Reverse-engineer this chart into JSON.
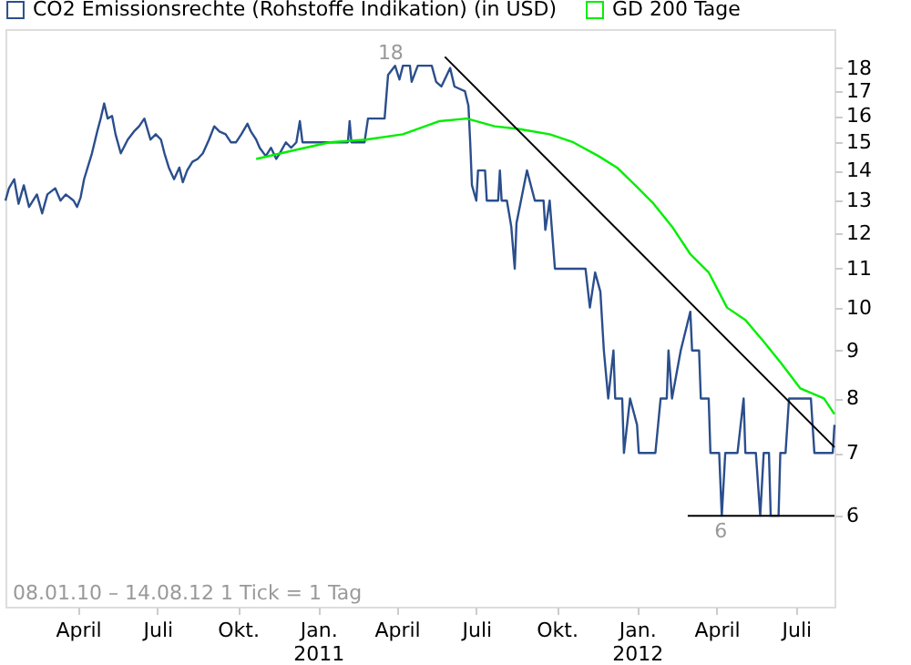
{
  "chart_data": {
    "type": "line",
    "xlim": [
      "2010-01-08",
      "2012-08-14"
    ],
    "ylim": [
      4.8,
      19.8
    ],
    "log": "y",
    "yticks": [
      6,
      7,
      8,
      9,
      10,
      11,
      12,
      13,
      14,
      15,
      16,
      17,
      18
    ],
    "xticks": [
      {
        "value": "2010-04-01",
        "label": "April"
      },
      {
        "value": "2010-07-01",
        "label": "Juli"
      },
      {
        "value": "2010-10-01",
        "label": "Okt."
      },
      {
        "value": "2011-01-01",
        "label": "Jan.\n2011"
      },
      {
        "value": "2011-04-01",
        "label": "April"
      },
      {
        "value": "2011-07-01",
        "label": "Juli"
      },
      {
        "value": "2011-10-01",
        "label": "Okt."
      },
      {
        "value": "2012-01-01",
        "label": "Jan.\n2012"
      },
      {
        "value": "2012-04-01",
        "label": "April"
      },
      {
        "value": "2012-07-01",
        "label": "Juli"
      }
    ],
    "grid": false,
    "legend": "top left",
    "line_style": "solid",
    "series": [
      {
        "name": "CO2 Emissionsrechte (Rohstoffe Indikation) (in USD)",
        "color": "#2b4e8c",
        "type": "line",
        "x": [
          "2010-01-08",
          "2010-01-12",
          "2010-01-18",
          "2010-01-23",
          "2010-01-29",
          "2010-02-04",
          "2010-02-13",
          "2010-02-19",
          "2010-02-25",
          "2010-03-06",
          "2010-03-12",
          "2010-03-18",
          "2010-03-27",
          "2010-03-31",
          "2010-04-04",
          "2010-04-08",
          "2010-04-17",
          "2010-04-23",
          "2010-04-27",
          "2010-05-01",
          "2010-05-05",
          "2010-05-10",
          "2010-05-14",
          "2010-05-20",
          "2010-05-28",
          "2010-06-04",
          "2010-06-10",
          "2010-06-16",
          "2010-06-23",
          "2010-06-29",
          "2010-07-05",
          "2010-07-09",
          "2010-07-14",
          "2010-07-20",
          "2010-07-26",
          "2010-07-30",
          "2010-08-04",
          "2010-08-10",
          "2010-08-16",
          "2010-08-22",
          "2010-08-29",
          "2010-09-04",
          "2010-09-10",
          "2010-09-17",
          "2010-09-23",
          "2010-09-29",
          "2010-10-05",
          "2010-10-12",
          "2010-10-16",
          "2010-10-22",
          "2010-10-26",
          "2010-11-02",
          "2010-11-08",
          "2010-11-14",
          "2010-11-18",
          "2010-11-25",
          "2010-12-01",
          "2010-12-07",
          "2010-12-11",
          "2010-12-14",
          "2011-02-04",
          "2011-02-06",
          "2011-02-08",
          "2011-02-23",
          "2011-02-27",
          "2011-03-18",
          "2011-03-22",
          "2011-03-30",
          "2011-04-04",
          "2011-04-08",
          "2011-04-16",
          "2011-04-18",
          "2011-04-25",
          "2011-05-11",
          "2011-05-16",
          "2011-05-22",
          "2011-06-01",
          "2011-06-06",
          "2011-06-18",
          "2011-06-22",
          "2011-06-24",
          "2011-06-26",
          "2011-07-01",
          "2011-07-03",
          "2011-07-11",
          "2011-07-13",
          "2011-07-26",
          "2011-07-28",
          "2011-07-30",
          "2011-08-05",
          "2011-08-10",
          "2011-08-14",
          "2011-08-16",
          "2011-08-28",
          "2011-09-06",
          "2011-09-16",
          "2011-09-18",
          "2011-09-23",
          "2011-09-29",
          "2011-11-03",
          "2011-11-08",
          "2011-11-14",
          "2011-11-20",
          "2011-11-24",
          "2011-11-29",
          "2011-12-05",
          "2011-12-07",
          "2011-12-15",
          "2011-12-17",
          "2011-12-24",
          "2012-01-01",
          "2012-01-03",
          "2012-01-22",
          "2012-01-28",
          "2012-02-04",
          "2012-02-06",
          "2012-02-10",
          "2012-02-20",
          "2012-03-02",
          "2012-03-04",
          "2012-03-12",
          "2012-03-14",
          "2012-03-23",
          "2012-03-25",
          "2012-04-04",
          "2012-04-07",
          "2012-04-11",
          "2012-04-25",
          "2012-05-02",
          "2012-05-04",
          "2012-05-16",
          "2012-05-21",
          "2012-05-25",
          "2012-05-31",
          "2012-06-02",
          "2012-06-11",
          "2012-06-13",
          "2012-06-19",
          "2012-06-23",
          "2012-07-18",
          "2012-07-22",
          "2012-08-12",
          "2012-08-14"
        ],
        "values": [
          13.0,
          13.4,
          13.7,
          12.9,
          13.5,
          12.8,
          13.2,
          12.6,
          13.2,
          13.4,
          13.0,
          13.2,
          13.0,
          12.8,
          13.1,
          13.7,
          14.6,
          15.4,
          15.9,
          16.5,
          15.9,
          16.0,
          15.3,
          14.6,
          15.1,
          15.4,
          15.6,
          15.9,
          15.1,
          15.3,
          15.1,
          14.6,
          14.1,
          13.7,
          14.1,
          13.6,
          14.0,
          14.3,
          14.4,
          14.6,
          15.1,
          15.6,
          15.4,
          15.3,
          15.0,
          15.0,
          15.3,
          15.7,
          15.4,
          15.1,
          14.8,
          14.5,
          14.8,
          14.4,
          14.6,
          15.0,
          14.8,
          15.0,
          15.8,
          15.0,
          15.0,
          15.8,
          15.0,
          15.0,
          15.9,
          15.9,
          17.7,
          18.1,
          17.5,
          18.1,
          18.1,
          17.4,
          18.1,
          18.1,
          17.4,
          17.2,
          18.0,
          17.2,
          17.0,
          16.4,
          15.0,
          13.5,
          13.0,
          14.0,
          14.0,
          13.0,
          13.0,
          14.0,
          13.0,
          13.0,
          12.2,
          11.0,
          12.3,
          14.0,
          13.0,
          13.0,
          12.1,
          13.0,
          11.0,
          11.0,
          10.0,
          10.9,
          10.4,
          9.0,
          8.0,
          9.0,
          8.0,
          8.0,
          7.0,
          8.0,
          7.5,
          7.0,
          7.0,
          8.0,
          8.0,
          9.0,
          8.0,
          9.0,
          9.9,
          9.0,
          9.0,
          8.0,
          8.0,
          7.0,
          7.0,
          6.0,
          7.0,
          7.0,
          8.0,
          7.0,
          7.0,
          6.0,
          7.0,
          7.0,
          6.0,
          6.0,
          7.0,
          7.0,
          8.0,
          8.0,
          7.0,
          7.0,
          7.5
        ]
      },
      {
        "name": "GD 200 Tage",
        "color": "#00ee00",
        "type": "line",
        "x": [
          "2010-10-22",
          "2010-12-03",
          "2011-01-14",
          "2011-02-25",
          "2011-04-08",
          "2011-05-20",
          "2011-06-20",
          "2011-07-22",
          "2011-08-18",
          "2011-09-23",
          "2011-10-20",
          "2011-11-18",
          "2011-12-09",
          "2011-12-30",
          "2012-01-20",
          "2012-02-10",
          "2012-03-02",
          "2012-03-23",
          "2012-04-13",
          "2012-05-04",
          "2012-05-25",
          "2012-06-15",
          "2012-07-06",
          "2012-08-02",
          "2012-08-14"
        ],
        "values": [
          14.4,
          14.7,
          15.0,
          15.1,
          15.3,
          15.8,
          15.9,
          15.6,
          15.5,
          15.3,
          15.0,
          14.5,
          14.1,
          13.5,
          12.9,
          12.2,
          11.4,
          10.9,
          10.0,
          9.7,
          9.2,
          8.7,
          8.2,
          8.0,
          7.7
        ]
      },
      {
        "color": "#000000",
        "type": "line",
        "x": [
          "2011-05-26",
          "2012-08-14"
        ],
        "values": [
          18.5,
          7.1
        ]
      },
      {
        "color": "#000000",
        "type": "line",
        "x": [
          "2012-02-28",
          "2012-08-14"
        ],
        "values": [
          6.0,
          6.0
        ]
      }
    ],
    "annotations": [
      {
        "text": "18",
        "x": "2011-03-25",
        "y": 18
      },
      {
        "text": "6",
        "x": "2012-04-06",
        "y": 6
      },
      "08.01.10 – 14.08.12   1 Tick = 1 Tag"
    ]
  }
}
